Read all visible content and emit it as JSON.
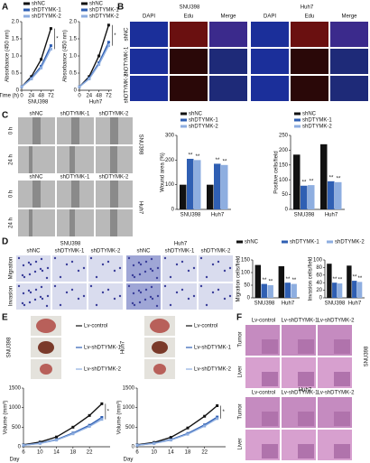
{
  "panels": {
    "letters": [
      "A",
      "B",
      "C",
      "D",
      "E",
      "F"
    ],
    "b": {
      "lines": [
        "SNU398",
        "Huh7"
      ],
      "stains": [
        "DAPI",
        "Edu",
        "Merge"
      ],
      "groups": [
        "shNC",
        "shDTYMK-1",
        "shDTYMK-2"
      ]
    },
    "c": {
      "lines": [
        "SNU398",
        "Huh7"
      ],
      "times": [
        "0 h",
        "24 h"
      ],
      "groups": [
        "shNC",
        "shDTYMK-1",
        "shDTYMK-2"
      ]
    },
    "d": {
      "lines": [
        "SNU398",
        "Huh7"
      ],
      "assays": [
        "Migration",
        "Invasion"
      ],
      "groups": [
        "shNC",
        "shDTYMK-1",
        "shDTYMK-2"
      ]
    },
    "e": {
      "lines": [
        "SNU398",
        "Huh7"
      ]
    },
    "f": {
      "lines": [
        "SNU398",
        "Huh7"
      ],
      "tissues": [
        "Tumor",
        "Liver"
      ],
      "groups": [
        "Lv-control",
        "Lv-shDTYMK-1",
        "Lv-shDTYMK-2"
      ]
    }
  },
  "chart_data": [
    {
      "type": "line",
      "x_name": "Time (h)",
      "xlabel": "SNU398",
      "ylabel": "Absorbance (450 nm)",
      "annotation": "*",
      "x": [
        0,
        24,
        48,
        72
      ],
      "xlim": [
        0,
        80
      ],
      "xticks": [
        0,
        24,
        48,
        72
      ],
      "ylim": [
        0,
        2
      ],
      "yticks": [
        0,
        0.5,
        {
          "value": 1,
          "label": "1.0"
        },
        1.5,
        {
          "value": 2,
          "label": "2.0"
        }
      ],
      "series": [
        {
          "name": "shNC",
          "color": "#111111",
          "values": [
            0.1,
            0.4,
            0.9,
            1.8
          ]
        },
        {
          "name": "shDTYMK-1",
          "color": "#2f5fb3",
          "values": [
            0.1,
            0.35,
            0.7,
            1.3
          ]
        },
        {
          "name": "shDTYMK-2",
          "color": "#8eaee0",
          "values": [
            0.1,
            0.33,
            0.65,
            1.2
          ]
        }
      ]
    },
    {
      "type": "line",
      "xlabel": "Huh7",
      "ylabel": "Absorbance (450 nm)",
      "annotation": "*",
      "x": [
        0,
        24,
        48,
        72
      ],
      "xlim": [
        0,
        80
      ],
      "xticks": [
        0,
        24,
        48,
        72
      ],
      "ylim": [
        0,
        2
      ],
      "yticks": [
        0,
        0.5,
        {
          "value": 1,
          "label": "1.0"
        },
        1.5,
        {
          "value": 2,
          "label": "2.0"
        }
      ],
      "series": [
        {
          "name": "shNC",
          "color": "#111111",
          "values": [
            0.1,
            0.4,
            1.0,
            1.9
          ]
        },
        {
          "name": "shDTYMK-1",
          "color": "#2f5fb3",
          "values": [
            0.1,
            0.35,
            0.8,
            1.4
          ]
        },
        {
          "name": "shDTYMK-2",
          "color": "#8eaee0",
          "values": [
            0.1,
            0.33,
            0.75,
            1.3
          ]
        }
      ]
    },
    {
      "type": "bar",
      "ylabel": "Wound area (%)",
      "annotation": "**",
      "categories": [
        "SNU398",
        "Huh7"
      ],
      "ylim": [
        0,
        300
      ],
      "yticks": [
        0,
        100,
        200,
        300
      ],
      "series": [
        {
          "name": "shNC",
          "color": "#111111",
          "values": [
            100,
            100
          ]
        },
        {
          "name": "shDTYMK-1",
          "color": "#2f5fb3",
          "values": [
            205,
            185
          ]
        },
        {
          "name": "shDTYMK-2",
          "color": "#8eaee0",
          "values": [
            200,
            180
          ]
        }
      ]
    },
    {
      "type": "bar",
      "ylabel": "Positive cells/field",
      "annotation": "**",
      "categories": [
        "SNU398",
        "Huh7"
      ],
      "ylim": [
        0,
        250
      ],
      "yticks": [
        0,
        50,
        100,
        150,
        200,
        250
      ],
      "series": [
        {
          "name": "shNC",
          "color": "#111111",
          "values": [
            185,
            220
          ]
        },
        {
          "name": "shDTYMK-1",
          "color": "#2f5fb3",
          "values": [
            80,
            95
          ]
        },
        {
          "name": "shDTYMK-2",
          "color": "#8eaee0",
          "values": [
            82,
            92
          ]
        }
      ]
    },
    {
      "type": "bar",
      "ylabel": "Migration cells/field",
      "annotation": "**",
      "categories": [
        "SNU398",
        "Huh7"
      ],
      "ylim": [
        0,
        150
      ],
      "yticks": [
        0,
        50,
        100,
        150
      ],
      "series": [
        {
          "name": "shNC",
          "color": "#111111",
          "values": [
            130,
            125
          ]
        },
        {
          "name": "shDTYMK-1",
          "color": "#2f5fb3",
          "values": [
            55,
            60
          ]
        },
        {
          "name": "shDTYMK-2",
          "color": "#8eaee0",
          "values": [
            50,
            55
          ]
        }
      ]
    },
    {
      "type": "bar",
      "ylabel": "Invasion cells/field",
      "annotation": "**",
      "categories": [
        "SNU398",
        "Huh7"
      ],
      "ylim": [
        0,
        100
      ],
      "yticks": [
        0,
        20,
        40,
        60,
        80,
        100
      ],
      "series": [
        {
          "name": "shNC",
          "color": "#111111",
          "values": [
            90,
            85
          ]
        },
        {
          "name": "shDTYMK-1",
          "color": "#2f5fb3",
          "values": [
            40,
            45
          ]
        },
        {
          "name": "shDTYMK-2",
          "color": "#8eaee0",
          "values": [
            38,
            42
          ]
        }
      ]
    },
    {
      "type": "line",
      "xlabel": "Day",
      "ylabel": "Volume (mm³)",
      "annotation": "*",
      "x": [
        6,
        10,
        14,
        18,
        22,
        25
      ],
      "xlim": [
        6,
        27
      ],
      "xticks": [
        6,
        10,
        14,
        18,
        22
      ],
      "ylim": [
        0,
        1500
      ],
      "yticks": [
        0,
        500,
        1000,
        1500
      ],
      "series": [
        {
          "name": "Lv-control",
          "color": "#111111",
          "values": [
            50,
            120,
            250,
            500,
            800,
            1100
          ]
        },
        {
          "name": "Lv-shDTYMK-1",
          "color": "#2f5fb3",
          "values": [
            40,
            90,
            180,
            350,
            550,
            750
          ]
        },
        {
          "name": "Lv-shDTYMK-2",
          "color": "#8eaee0",
          "values": [
            40,
            85,
            170,
            330,
            520,
            700
          ]
        }
      ]
    },
    {
      "type": "line",
      "xlabel": "Day",
      "ylabel": "Volume (mm³)",
      "annotation": "*",
      "x": [
        6,
        10,
        14,
        18,
        22,
        25
      ],
      "xlim": [
        6,
        27
      ],
      "xticks": [
        6,
        10,
        14,
        18,
        22
      ],
      "ylim": [
        0,
        1500
      ],
      "yticks": [
        0,
        500,
        1000,
        1500
      ],
      "series": [
        {
          "name": "Lv-control",
          "color": "#111111",
          "values": [
            50,
            110,
            240,
            480,
            780,
            1050
          ]
        },
        {
          "name": "Lv-shDTYMK-1",
          "color": "#2f5fb3",
          "values": [
            40,
            90,
            180,
            340,
            560,
            760
          ]
        },
        {
          "name": "Lv-shDTYMK-2",
          "color": "#8eaee0",
          "values": [
            40,
            85,
            170,
            320,
            530,
            720
          ]
        }
      ]
    }
  ]
}
